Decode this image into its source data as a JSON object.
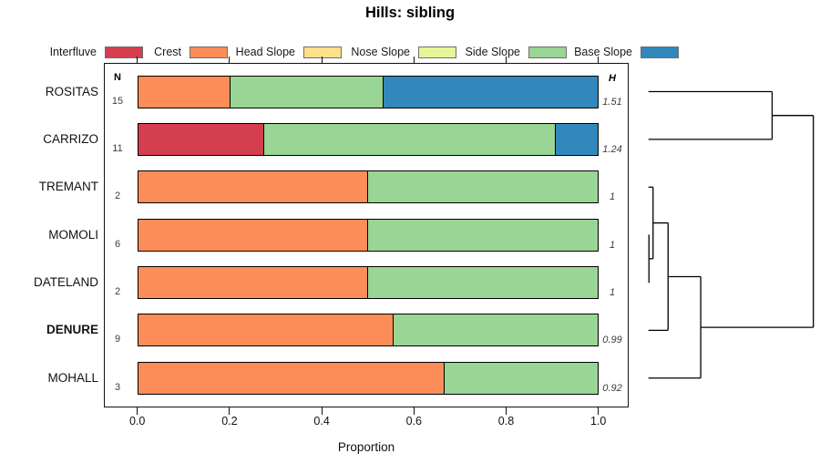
{
  "title": "Hills: sibling",
  "axis": {
    "xlabel": "Proportion",
    "xticks": [
      "0.0",
      "0.2",
      "0.4",
      "0.6",
      "0.8",
      "1.0"
    ]
  },
  "columns": {
    "n_header": "N",
    "h_header": "H"
  },
  "legend": [
    {
      "label": "Interfluve",
      "color": "#D53E4F"
    },
    {
      "label": "Crest",
      "color": "#FC8D59"
    },
    {
      "label": "Head Slope",
      "color": "#FEE08B"
    },
    {
      "label": "Nose Slope",
      "color": "#E6F598"
    },
    {
      "label": "Side Slope",
      "color": "#99D594"
    },
    {
      "label": "Base Slope",
      "color": "#3288BD"
    }
  ],
  "chart_data": {
    "type": "bar",
    "orientation": "horizontal-stacked",
    "title": "Hills: sibling",
    "xlabel": "Proportion",
    "xlim": [
      0,
      1
    ],
    "xticks": [
      0,
      0.2,
      0.4,
      0.6,
      0.8,
      1.0
    ],
    "legend_position": "top",
    "categories": [
      "ROSITAS",
      "CARRIZO",
      "TREMANT",
      "MOMOLI",
      "DATELAND",
      "DENURE",
      "MOHALL"
    ],
    "palette": {
      "Interfluve": "#D53E4F",
      "Crest": "#FC8D59",
      "Head Slope": "#FEE08B",
      "Nose Slope": "#E6F598",
      "Side Slope": "#99D594",
      "Base Slope": "#3288BD"
    },
    "rows": [
      {
        "label": "ROSITAS",
        "n": 15,
        "h": "1.51",
        "bold": false,
        "segments": [
          {
            "class": "Crest",
            "value": 0.2
          },
          {
            "class": "Side Slope",
            "value": 0.333
          },
          {
            "class": "Base Slope",
            "value": 0.467
          }
        ]
      },
      {
        "label": "CARRIZO",
        "n": 11,
        "h": "1.24",
        "bold": false,
        "segments": [
          {
            "class": "Interfluve",
            "value": 0.273
          },
          {
            "class": "Side Slope",
            "value": 0.636
          },
          {
            "class": "Base Slope",
            "value": 0.091
          }
        ]
      },
      {
        "label": "TREMANT",
        "n": 2,
        "h": "1",
        "bold": false,
        "segments": [
          {
            "class": "Crest",
            "value": 0.5
          },
          {
            "class": "Side Slope",
            "value": 0.5
          }
        ]
      },
      {
        "label": "MOMOLI",
        "n": 6,
        "h": "1",
        "bold": false,
        "segments": [
          {
            "class": "Crest",
            "value": 0.5
          },
          {
            "class": "Side Slope",
            "value": 0.5
          }
        ]
      },
      {
        "label": "DATELAND",
        "n": 2,
        "h": "1",
        "bold": false,
        "segments": [
          {
            "class": "Crest",
            "value": 0.5
          },
          {
            "class": "Side Slope",
            "value": 0.5
          }
        ]
      },
      {
        "label": "DENURE",
        "n": 9,
        "h": "0.99",
        "bold": true,
        "segments": [
          {
            "class": "Crest",
            "value": 0.556
          },
          {
            "class": "Side Slope",
            "value": 0.444
          }
        ]
      },
      {
        "label": "MOHALL",
        "n": 3,
        "h": "0.92",
        "bold": false,
        "segments": [
          {
            "class": "Crest",
            "value": 0.667
          },
          {
            "class": "Side Slope",
            "value": 0.333
          }
        ]
      }
    ],
    "dendrogram": {
      "side": "right",
      "leaf_order": [
        "ROSITAS",
        "CARRIZO",
        "TREMANT",
        "MOMOLI",
        "DATELAND",
        "DENURE",
        "MOHALL"
      ],
      "merges": [
        {
          "id": "m1",
          "children": [
            "MOMOLI",
            "DATELAND"
          ],
          "height": 0.003
        },
        {
          "id": "m2",
          "children": [
            "TREMANT",
            "m1"
          ],
          "height": 0.028
        },
        {
          "id": "m3",
          "children": [
            "m2",
            "DENURE"
          ],
          "height": 0.119
        },
        {
          "id": "m4",
          "children": [
            "m3",
            "MOHALL"
          ],
          "height": 0.317
        },
        {
          "id": "m5",
          "children": [
            "ROSITAS",
            "CARRIZO"
          ],
          "height": 0.75
        },
        {
          "id": "m6",
          "children": [
            "m5",
            "m4"
          ],
          "height": 1.0
        }
      ]
    }
  }
}
